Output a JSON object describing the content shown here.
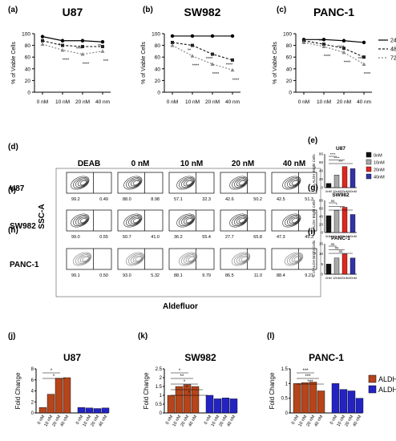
{
  "panel_labels": [
    "(a)",
    "(b)",
    "(c)",
    "(d)",
    "(e)",
    "(f)",
    "(g)",
    "(h)",
    "(i)",
    "(j)",
    "(k)",
    "(l)"
  ],
  "colors": {
    "bright": "#b5451b",
    "dim": "#2323c4",
    "c0": "#111111",
    "c10": "#a9a9a9",
    "c20": "#e0261e",
    "c40": "#3232a8",
    "pink": "#f3b6e1"
  },
  "chart_data": [
    {
      "id": "a",
      "type": "line",
      "title": "U87",
      "ylabel": "% of Viable Cells",
      "categories": [
        "0 nM",
        "10 nM",
        "20 nM",
        "40 nm"
      ],
      "ylim": [
        0,
        100
      ],
      "yticks": [
        0,
        20,
        40,
        60,
        80,
        100
      ],
      "series": [
        {
          "name": "24 h",
          "values": [
            95,
            88,
            88,
            86
          ]
        },
        {
          "name": "48 h",
          "values": [
            88,
            80,
            78,
            78
          ]
        },
        {
          "name": "72 h",
          "values": [
            82,
            72,
            65,
            70
          ]
        }
      ],
      "annotations": [
        "*",
        "****",
        "****",
        "****",
        "**",
        "***"
      ]
    },
    {
      "id": "b",
      "type": "line",
      "title": "SW982",
      "ylabel": "% of Viable Cells",
      "categories": [
        "0 nM",
        "10 nM",
        "20 nM",
        "40 nm"
      ],
      "ylim": [
        0,
        100
      ],
      "yticks": [
        0,
        20,
        40,
        60,
        80,
        100
      ],
      "series": [
        {
          "name": "24 h",
          "values": [
            96,
            96,
            96,
            96
          ]
        },
        {
          "name": "48 h",
          "values": [
            85,
            80,
            65,
            55
          ]
        },
        {
          "name": "72 h",
          "values": [
            80,
            62,
            48,
            38
          ]
        }
      ],
      "annotations": [
        "**",
        "****",
        "****",
        "****",
        "****",
        "****"
      ]
    },
    {
      "id": "c",
      "type": "line",
      "title": "PANC-1",
      "ylabel": "% of Viable Cells",
      "categories": [
        "0 nM",
        "10 nM",
        "20 nM",
        "40 nm"
      ],
      "ylim": [
        0,
        100
      ],
      "yticks": [
        0,
        20,
        40,
        60,
        80,
        100
      ],
      "legend": [
        "24 h",
        "48 h",
        "72 h"
      ],
      "series": [
        {
          "name": "24 h",
          "values": [
            90,
            90,
            88,
            85
          ]
        },
        {
          "name": "48 h",
          "values": [
            88,
            82,
            75,
            60
          ]
        },
        {
          "name": "72 h",
          "values": [
            85,
            78,
            68,
            48
          ]
        }
      ],
      "annotations": [
        "**",
        "****",
        "****",
        "****",
        "***",
        "****"
      ]
    },
    {
      "id": "e",
      "type": "bar",
      "title": "U87",
      "ylabel": "% ALDH Bright Cells",
      "categories": [
        "0nM",
        "10nM",
        "20nM",
        "40nM"
      ],
      "values": [
        10,
        30,
        50,
        45
      ],
      "ylim": [
        0,
        80
      ],
      "yticks": [
        0,
        20,
        40,
        60,
        80
      ],
      "legend": [
        "0nM",
        "10nM",
        "20nM",
        "40nM"
      ],
      "sig": [
        "****",
        "****",
        "***"
      ]
    },
    {
      "id": "g",
      "type": "bar",
      "title": "SW982",
      "ylabel": "% ALDH Bright Cells",
      "categories": [
        "0nM",
        "10nM",
        "20nM",
        "40nM"
      ],
      "values": [
        42,
        55,
        63,
        45
      ],
      "ylim": [
        0,
        80
      ],
      "yticks": [
        0,
        20,
        40,
        60,
        80
      ],
      "sig": [
        "ns",
        "*",
        "*"
      ]
    },
    {
      "id": "i",
      "type": "bar",
      "title": "PANC-1",
      "ylabel": "% of ALDH Bright Cells",
      "categories": [
        "0nM",
        "10nM",
        "20nM",
        "40nM"
      ],
      "values": [
        5,
        8,
        10,
        8
      ],
      "ylim": [
        0,
        15
      ],
      "yticks": [
        0,
        5,
        10,
        15
      ],
      "sig": [
        "ns",
        "ns",
        "ns"
      ]
    },
    {
      "id": "j",
      "type": "bar",
      "title": "U87",
      "ylabel": "Fold Change",
      "categories": [
        "0 nM",
        "10 nM",
        "20 nM",
        "40 nM"
      ],
      "ylim": [
        0,
        8
      ],
      "yticks": [
        0,
        2,
        4,
        6,
        8
      ],
      "series": [
        {
          "name": "ALDHbright",
          "values": [
            1.0,
            3.4,
            6.3,
            6.4
          ]
        },
        {
          "name": "ALDHdim",
          "values": [
            1.0,
            0.9,
            0.8,
            0.9
          ]
        }
      ],
      "sig": [
        "*",
        "*"
      ]
    },
    {
      "id": "k",
      "type": "bar",
      "title": "SW982",
      "ylabel": "Fold Change",
      "categories": [
        "0 nM",
        "10 nM",
        "20 nM",
        "40 nM"
      ],
      "ylim": [
        0,
        2.5
      ],
      "yticks": [
        0.0,
        0.5,
        1.0,
        1.5,
        2.0,
        2.5
      ],
      "series": [
        {
          "name": "ALDHbright",
          "values": [
            1.0,
            1.5,
            1.6,
            1.5
          ]
        },
        {
          "name": "ALDHdim",
          "values": [
            1.0,
            0.8,
            0.85,
            0.8
          ]
        }
      ],
      "sig": [
        "*",
        "**",
        "*",
        "*",
        "*"
      ]
    },
    {
      "id": "l",
      "type": "bar",
      "title": "PANC-1",
      "ylabel": "Fold Change",
      "categories": [
        "0 nM",
        "10 nM",
        "20 nM",
        "40 nM"
      ],
      "ylim": [
        0,
        1.5
      ],
      "yticks": [
        0.0,
        0.5,
        1.0,
        1.5
      ],
      "legend": [
        "ALDHbright",
        "ALDHdim"
      ],
      "series": [
        {
          "name": "ALDHbright",
          "values": [
            1.0,
            1.03,
            1.05,
            0.75
          ]
        },
        {
          "name": "ALDHdim",
          "values": [
            1.0,
            0.8,
            0.75,
            0.5
          ]
        }
      ],
      "sig": [
        "***",
        "***",
        "***"
      ]
    },
    {
      "id": "d",
      "type": "table",
      "xlabel": "Aldefluor",
      "ylabel": "SSC-A",
      "columns": [
        "DEAB",
        "0 nM",
        "10 nM",
        "20 nM",
        "40 nM"
      ],
      "rows": [
        {
          "name": "U87",
          "left": [
            "99.2",
            "88.0",
            "57.1",
            "42.6",
            "42.5"
          ],
          "right": [
            "0.49",
            "8.98",
            "32.3",
            "50.2",
            "51.3"
          ]
        },
        {
          "name": "SW982",
          "left": [
            "99.0",
            "50.7",
            "36.2",
            "27.7",
            "47.3"
          ],
          "right": [
            "0.55",
            "41.0",
            "55.4",
            "65.8",
            "45.3"
          ]
        },
        {
          "name": "PANC-1",
          "left": [
            "99.1",
            "93.0",
            "88.1",
            "86.5",
            "88.4"
          ],
          "right": [
            "0.50",
            "5.32",
            "9.79",
            "11.0",
            "9.21"
          ]
        }
      ]
    }
  ]
}
